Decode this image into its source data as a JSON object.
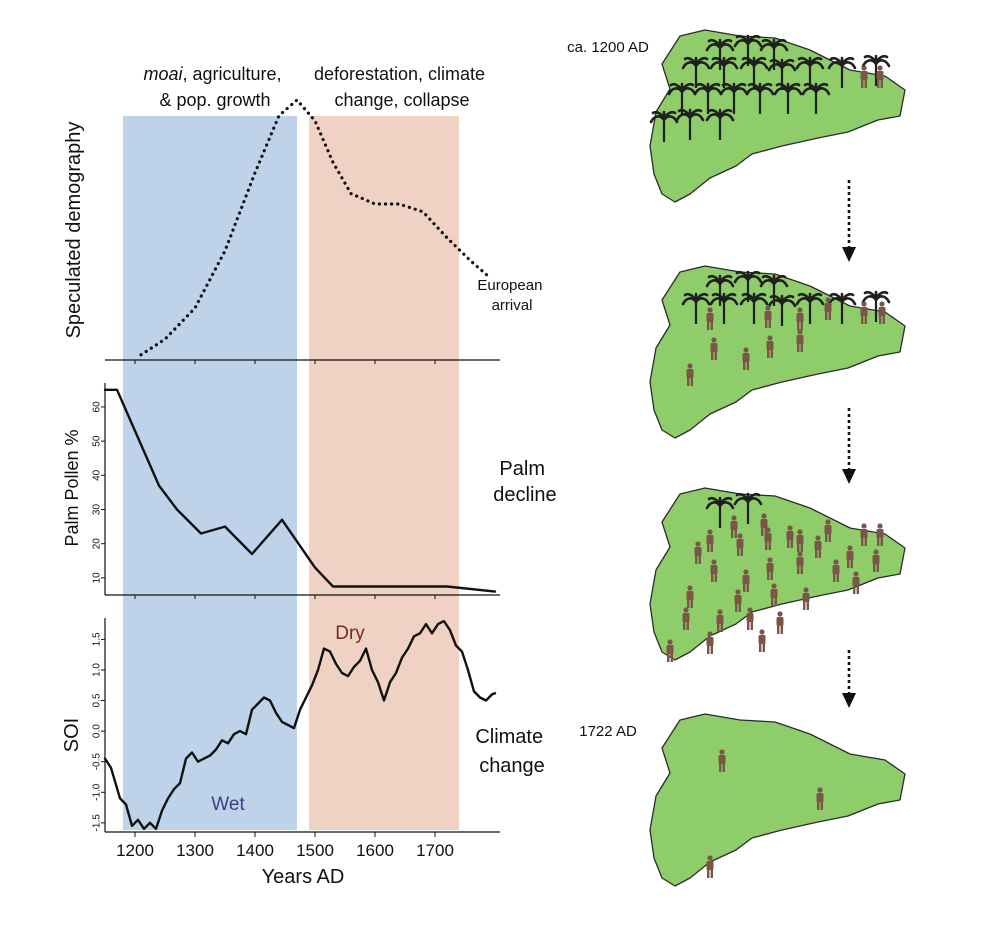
{
  "colors": {
    "blue_band": "#bed3e9",
    "orange_band": "#efd2c3",
    "island": "#8fcc6a",
    "palm": "#1f1f1f",
    "person": "#7a5548",
    "wet_label": "#3b3f87",
    "dry_label": "#7a2a25"
  },
  "bands": [
    {
      "name": "moai-period",
      "from": 1180,
      "to": 1470,
      "label_italic": "moai",
      "label_line1": ", agriculture,",
      "label_line2": "& pop. growth"
    },
    {
      "name": "collapse-period",
      "from": 1490,
      "to": 1740,
      "label_line1": "deforestation, climate",
      "label_line2": "change, collapse"
    }
  ],
  "chart_data": [
    {
      "type": "line",
      "ylabel": "Speculated demography",
      "style": "dotted",
      "show_yticks": false,
      "xlim": [
        1150,
        1800
      ],
      "ylim": [
        0,
        1
      ],
      "x": [
        1210,
        1250,
        1300,
        1350,
        1400,
        1440,
        1470,
        1500,
        1530,
        1560,
        1600,
        1640,
        1680,
        1720,
        1760,
        1790
      ],
      "y": [
        0.02,
        0.08,
        0.2,
        0.42,
        0.72,
        0.94,
        1.0,
        0.92,
        0.76,
        0.64,
        0.6,
        0.6,
        0.57,
        0.47,
        0.38,
        0.32
      ],
      "annotation_line1": "European",
      "annotation_line2": "arrival",
      "side_label_line1": "",
      "side_label_line2": ""
    },
    {
      "type": "line",
      "ylabel": "Palm Pollen %",
      "xlim": [
        1150,
        1800
      ],
      "ylim": [
        5,
        67
      ],
      "yticks": [
        10,
        20,
        30,
        40,
        50,
        60
      ],
      "x": [
        1150,
        1170,
        1200,
        1240,
        1270,
        1310,
        1350,
        1395,
        1445,
        1500,
        1530,
        1600,
        1720,
        1800
      ],
      "y": [
        65,
        65,
        53,
        37,
        30,
        23,
        25,
        17,
        27,
        13,
        7.5,
        7.5,
        7.5,
        6
      ],
      "side_label_line1": "Palm",
      "side_label_line2": "decline"
    },
    {
      "type": "line",
      "ylabel": "SOI",
      "xlim": [
        1150,
        1800
      ],
      "ylim": [
        -1.65,
        1.85
      ],
      "yticks": [
        -1.5,
        -1.0,
        -0.5,
        0.0,
        0.5,
        1.0,
        1.5
      ],
      "ytick_labels": [
        "-1.5",
        "-1.0",
        "-0.5",
        "0.0",
        "0.5",
        "1.0",
        "1.5"
      ],
      "x": [
        1150,
        1160,
        1175,
        1185,
        1195,
        1205,
        1215,
        1225,
        1235,
        1245,
        1255,
        1265,
        1275,
        1285,
        1295,
        1305,
        1315,
        1325,
        1335,
        1345,
        1355,
        1365,
        1375,
        1385,
        1395,
        1405,
        1415,
        1425,
        1435,
        1445,
        1455,
        1465,
        1475,
        1485,
        1495,
        1505,
        1515,
        1525,
        1535,
        1545,
        1555,
        1565,
        1575,
        1585,
        1595,
        1605,
        1615,
        1625,
        1635,
        1645,
        1655,
        1665,
        1675,
        1685,
        1695,
        1705,
        1715,
        1725,
        1735,
        1745,
        1755,
        1765,
        1775,
        1785,
        1795,
        1800
      ],
      "y": [
        -0.45,
        -0.6,
        -1.1,
        -1.2,
        -1.55,
        -1.45,
        -1.6,
        -1.5,
        -1.6,
        -1.3,
        -1.1,
        -0.95,
        -0.85,
        -0.45,
        -0.35,
        -0.5,
        -0.45,
        -0.4,
        -0.3,
        -0.15,
        -0.2,
        -0.05,
        0.0,
        -0.05,
        0.35,
        0.45,
        0.55,
        0.5,
        0.3,
        0.15,
        0.1,
        0.05,
        0.35,
        0.55,
        0.75,
        1.0,
        1.35,
        1.3,
        1.1,
        0.95,
        0.9,
        1.05,
        1.15,
        1.35,
        1.0,
        0.8,
        0.5,
        0.8,
        0.95,
        1.2,
        1.35,
        1.55,
        1.6,
        1.75,
        1.6,
        1.75,
        1.8,
        1.65,
        1.4,
        1.3,
        1.0,
        0.65,
        0.55,
        0.5,
        0.6,
        0.62
      ],
      "band_labels": [
        "Wet",
        "Dry"
      ],
      "side_label_line1": "Climate",
      "side_label_line2": "change"
    }
  ],
  "x_axis": {
    "label": "Years AD",
    "ticks": [
      1200,
      1300,
      1400,
      1500,
      1600,
      1700
    ]
  },
  "islands": [
    {
      "name": "island-1200",
      "label": "ca. 1200 AD",
      "palms": 19,
      "people": 2
    },
    {
      "name": "island-stage-2",
      "label": "",
      "palms": 10,
      "people": 11
    },
    {
      "name": "island-stage-3",
      "label": "",
      "palms": 2,
      "people": 31
    },
    {
      "name": "island-1722",
      "label": "1722 AD",
      "palms": 0,
      "people": 3
    }
  ]
}
